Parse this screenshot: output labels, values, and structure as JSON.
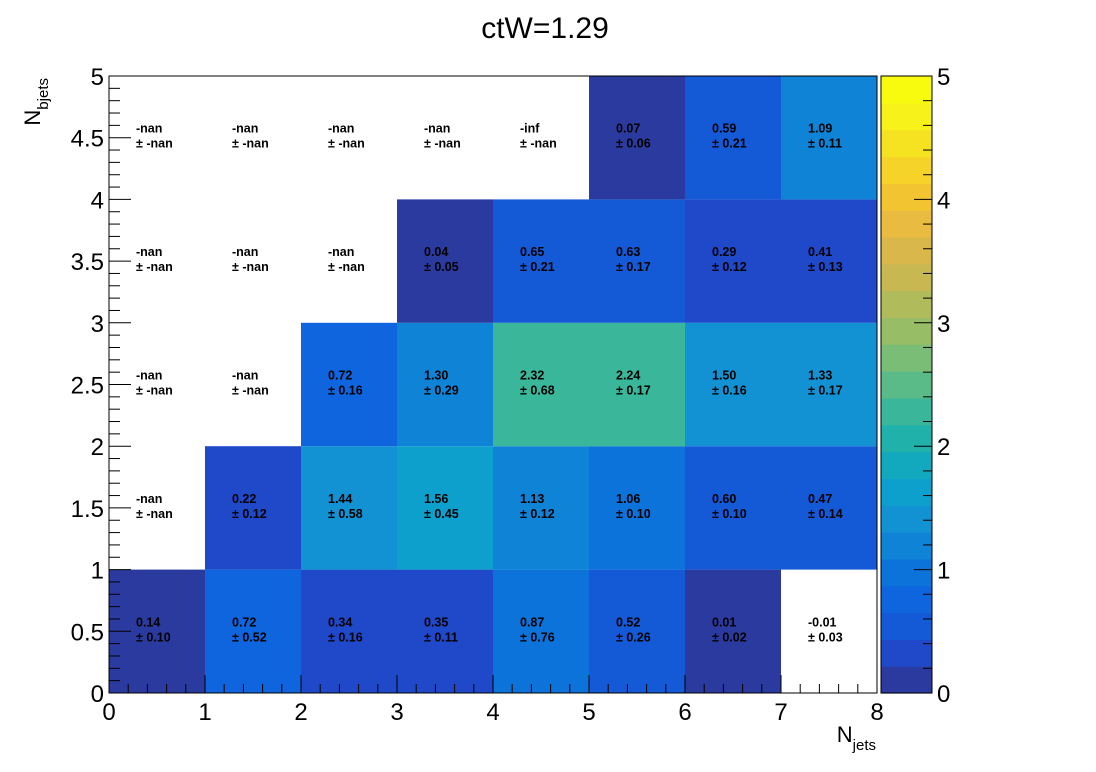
{
  "chart_data": {
    "type": "heatmap",
    "title": "ctW=1.29",
    "xlabel": {
      "main": "N",
      "sub": "jets"
    },
    "ylabel": {
      "main": "N",
      "sub": "bjets"
    },
    "xlim": [
      0,
      8
    ],
    "ylim": [
      0,
      5
    ],
    "x_ticks": [
      "0",
      "1",
      "2",
      "3",
      "4",
      "5",
      "6",
      "7",
      "8"
    ],
    "y_ticks": [
      "0",
      "0.5",
      "1",
      "1.5",
      "2",
      "2.5",
      "3",
      "3.5",
      "4",
      "4.5",
      "5"
    ],
    "x_bin_edges": [
      0,
      1,
      2,
      3,
      4,
      5,
      6,
      7,
      8
    ],
    "y_bin_edges": [
      0,
      1,
      2,
      3,
      4,
      5
    ],
    "zlim": [
      0,
      5
    ],
    "colorbar_ticks": [
      "0",
      "1",
      "2",
      "3",
      "4",
      "5"
    ],
    "rows": [
      {
        "y_range": [
          0,
          1
        ],
        "cells": [
          {
            "value": 0.14,
            "text": "0.14",
            "err": "± 0.10"
          },
          {
            "value": 0.72,
            "text": "0.72",
            "err": "± 0.52"
          },
          {
            "value": 0.34,
            "text": "0.34",
            "err": "± 0.16"
          },
          {
            "value": 0.35,
            "text": "0.35",
            "err": "± 0.11"
          },
          {
            "value": 0.87,
            "text": "0.87",
            "err": "± 0.76"
          },
          {
            "value": 0.52,
            "text": "0.52",
            "err": "± 0.26"
          },
          {
            "value": 0.01,
            "text": "0.01",
            "err": "± 0.02"
          },
          {
            "value": null,
            "text": "-0.01",
            "err": "± 0.03"
          }
        ]
      },
      {
        "y_range": [
          1,
          2
        ],
        "cells": [
          {
            "value": null,
            "text": "-nan",
            "err": "± -nan"
          },
          {
            "value": 0.22,
            "text": "0.22",
            "err": "± 0.12"
          },
          {
            "value": 1.44,
            "text": "1.44",
            "err": "± 0.58"
          },
          {
            "value": 1.56,
            "text": "1.56",
            "err": "± 0.45"
          },
          {
            "value": 1.13,
            "text": "1.13",
            "err": "± 0.12"
          },
          {
            "value": 1.06,
            "text": "1.06",
            "err": "± 0.10"
          },
          {
            "value": 0.6,
            "text": "0.60",
            "err": "± 0.10"
          },
          {
            "value": 0.47,
            "text": "0.47",
            "err": "± 0.14"
          }
        ]
      },
      {
        "y_range": [
          2,
          3
        ],
        "cells": [
          {
            "value": null,
            "text": "-nan",
            "err": "± -nan"
          },
          {
            "value": null,
            "text": "-nan",
            "err": "± -nan"
          },
          {
            "value": 0.72,
            "text": "0.72",
            "err": "± 0.16"
          },
          {
            "value": 1.3,
            "text": "1.30",
            "err": "± 0.29"
          },
          {
            "value": 2.32,
            "text": "2.32",
            "err": "± 0.68"
          },
          {
            "value": 2.24,
            "text": "2.24",
            "err": "± 0.17"
          },
          {
            "value": 1.5,
            "text": "1.50",
            "err": "± 0.16"
          },
          {
            "value": 1.33,
            "text": "1.33",
            "err": "± 0.17"
          }
        ]
      },
      {
        "y_range": [
          3,
          4
        ],
        "cells": [
          {
            "value": null,
            "text": "-nan",
            "err": "± -nan"
          },
          {
            "value": null,
            "text": "-nan",
            "err": "± -nan"
          },
          {
            "value": null,
            "text": "-nan",
            "err": "± -nan"
          },
          {
            "value": 0.04,
            "text": "0.04",
            "err": "± 0.05"
          },
          {
            "value": 0.65,
            "text": "0.65",
            "err": "± 0.21"
          },
          {
            "value": 0.63,
            "text": "0.63",
            "err": "± 0.17"
          },
          {
            "value": 0.29,
            "text": "0.29",
            "err": "± 0.12"
          },
          {
            "value": 0.41,
            "text": "0.41",
            "err": "± 0.13"
          }
        ]
      },
      {
        "y_range": [
          4,
          5
        ],
        "cells": [
          {
            "value": null,
            "text": "-nan",
            "err": "± -nan"
          },
          {
            "value": null,
            "text": "-nan",
            "err": "± -nan"
          },
          {
            "value": null,
            "text": "-nan",
            "err": "± -nan"
          },
          {
            "value": null,
            "text": "-nan",
            "err": "± -nan"
          },
          {
            "value": null,
            "text": "-inf",
            "err": "± -nan"
          },
          {
            "value": 0.07,
            "text": "0.07",
            "err": "± 0.06"
          },
          {
            "value": 0.59,
            "text": "0.59",
            "err": "± 0.21"
          },
          {
            "value": 1.09,
            "text": "1.09",
            "err": "± 0.11"
          }
        ]
      }
    ],
    "palette": [
      "#2a3a9e",
      "#1f49c9",
      "#1459d6",
      "#0f65dd",
      "#0c73da",
      "#0f83d6",
      "#1291d3",
      "#0da0cc",
      "#12a9be",
      "#20b2aa",
      "#3ab79a",
      "#5bbb88",
      "#79bd76",
      "#97bd67",
      "#b0bb5c",
      "#c7b852",
      "#dab74b",
      "#e9bb40",
      "#f3c432",
      "#f6d329",
      "#f5e321",
      "#f6f21a",
      "#f9fb0e"
    ]
  }
}
